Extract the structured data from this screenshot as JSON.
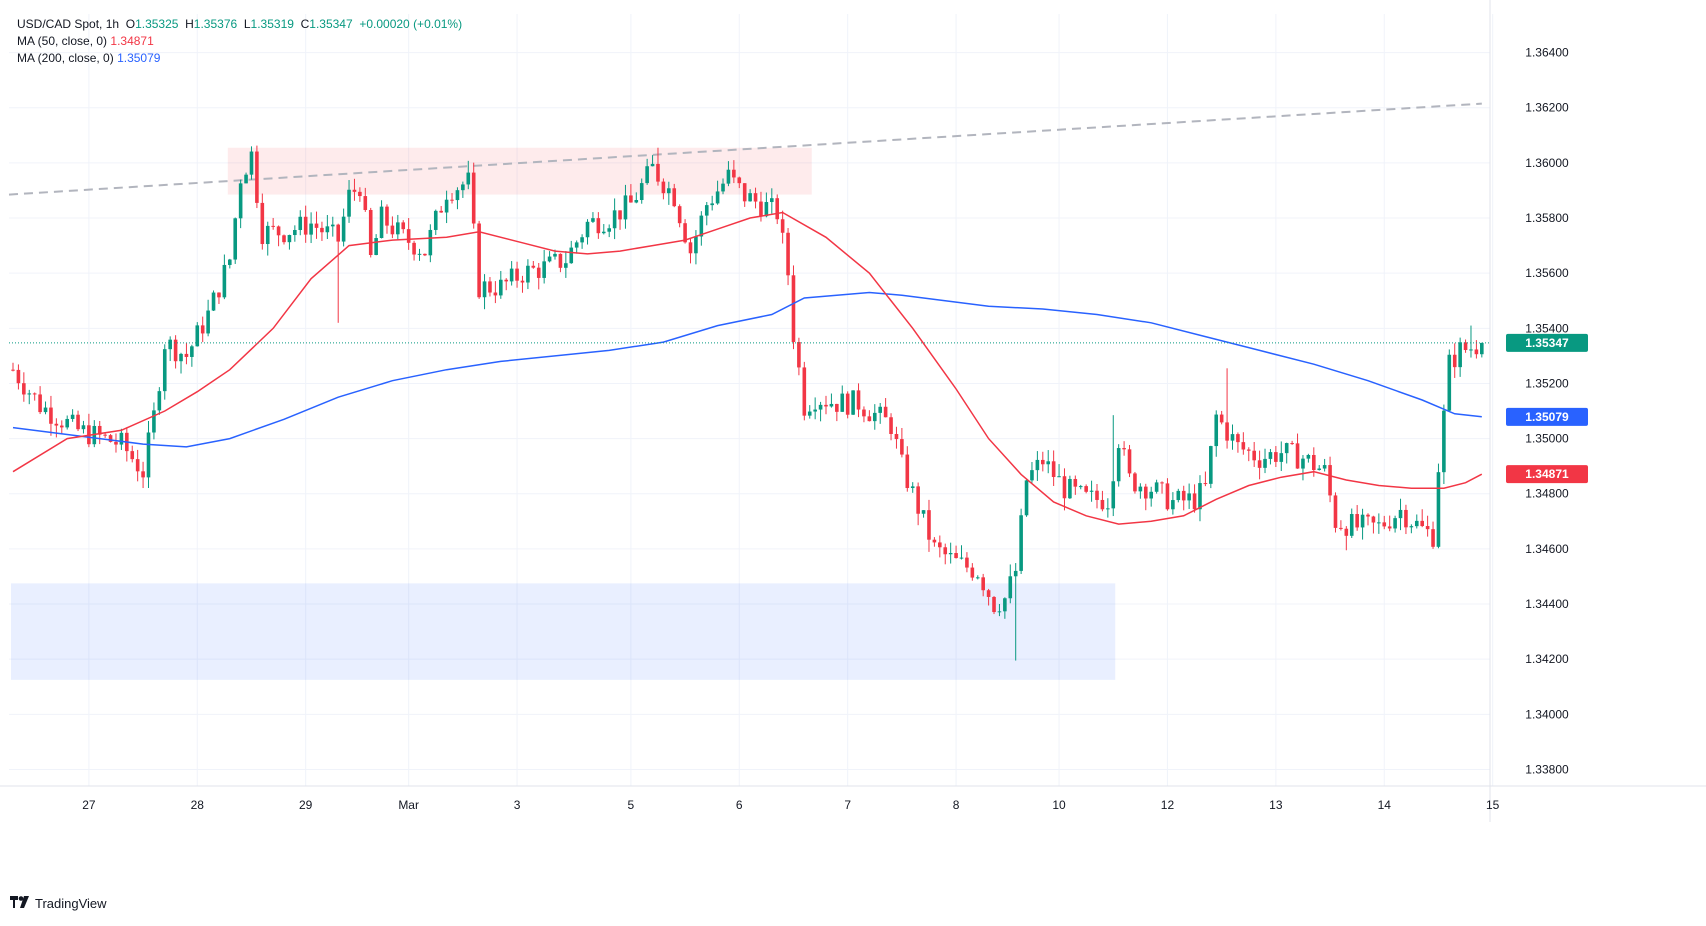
{
  "legend": {
    "symbol": "USD/CAD Spot, 1h",
    "open_label": "O",
    "open": "1.35325",
    "high_label": "H",
    "high": "1.35376",
    "low_label": "L",
    "low": "1.35319",
    "close_label": "C",
    "close": "1.35347",
    "change": "+0.00020 (+0.01%)",
    "ma50_label": "MA (50, close, 0)",
    "ma50_value": "1.34871",
    "ma200_label": "MA (200, close, 0)",
    "ma200_value": "1.35079"
  },
  "brand": {
    "name": "TradingView",
    "logo_icon": "tradingview-logo-icon"
  },
  "colors": {
    "up": "#089981",
    "down": "#f23645",
    "ma50": "#f23645",
    "ma200": "#2962ff",
    "grid": "#f0f3fa",
    "axis_text": "#131722",
    "resistance_zone": "rgba(242,54,69,0.10)",
    "support_zone": "rgba(41,98,255,0.10)",
    "trendline": "#b2b5be"
  },
  "chart_data": {
    "type": "candlestick",
    "symbol": "USD/CAD",
    "interval": "1h",
    "grid": true,
    "y_range": [
      1.3374,
      1.3654
    ],
    "y_ticks": [
      "1.36400",
      "1.36200",
      "1.36000",
      "1.35800",
      "1.35600",
      "1.35400",
      "1.35200",
      "1.35000",
      "1.34800",
      "1.34600",
      "1.34400",
      "1.34200",
      "1.34000",
      "1.33800"
    ],
    "x_ticks": [
      {
        "label": "27",
        "i": 14
      },
      {
        "label": "28",
        "i": 34
      },
      {
        "label": "29",
        "i": 54
      },
      {
        "label": "Mar",
        "i": 73
      },
      {
        "label": "3",
        "i": 93
      },
      {
        "label": "5",
        "i": 114
      },
      {
        "label": "6",
        "i": 134
      },
      {
        "label": "7",
        "i": 154
      },
      {
        "label": "8",
        "i": 174
      },
      {
        "label": "10",
        "i": 193
      },
      {
        "label": "12",
        "i": 213
      },
      {
        "label": "13",
        "i": 233
      },
      {
        "label": "14",
        "i": 253
      },
      {
        "label": "15",
        "i": 273
      }
    ],
    "bar_count": 272,
    "price_line": 1.35347,
    "price_labels": [
      {
        "value": 1.35347,
        "text": "1.35347",
        "color": "#089981"
      },
      {
        "value": 1.35079,
        "text": "1.35079",
        "color": "#2962ff"
      },
      {
        "value": 1.34871,
        "text": "1.34871",
        "color": "#f23645"
      }
    ],
    "zones": [
      {
        "name": "resistance-zone",
        "i_start": 40,
        "i_end": 147,
        "y_top": 1.36055,
        "y_bottom": 1.35885
      },
      {
        "name": "support-zone",
        "i_start": 0,
        "i_end": 203,
        "y_top": 1.34475,
        "y_bottom": 1.34125
      }
    ],
    "trendline": {
      "i_start": 0,
      "y_start": 1.35885,
      "i_end": 271,
      "y_end": 1.36215
    },
    "anchors": [
      [
        0,
        1.3525
      ],
      [
        5,
        1.3512
      ],
      [
        12,
        1.3503
      ],
      [
        20,
        1.3498
      ],
      [
        24,
        1.3488
      ],
      [
        26,
        1.3508
      ],
      [
        28,
        1.3535
      ],
      [
        32,
        1.353
      ],
      [
        36,
        1.3545
      ],
      [
        40,
        1.3565
      ],
      [
        42,
        1.3595
      ],
      [
        44,
        1.3603
      ],
      [
        46,
        1.3575
      ],
      [
        50,
        1.3575
      ],
      [
        55,
        1.3578
      ],
      [
        60,
        1.3572
      ],
      [
        62,
        1.3588
      ],
      [
        64,
        1.3592
      ],
      [
        66,
        1.3565
      ],
      [
        68,
        1.358
      ],
      [
        72,
        1.3573
      ],
      [
        76,
        1.3568
      ],
      [
        80,
        1.359
      ],
      [
        84,
        1.3593
      ],
      [
        86,
        1.3555
      ],
      [
        90,
        1.3555
      ],
      [
        94,
        1.356
      ],
      [
        98,
        1.3562
      ],
      [
        102,
        1.3565
      ],
      [
        106,
        1.3578
      ],
      [
        110,
        1.358
      ],
      [
        114,
        1.3585
      ],
      [
        118,
        1.3598
      ],
      [
        122,
        1.3588
      ],
      [
        125,
        1.3568
      ],
      [
        128,
        1.3585
      ],
      [
        132,
        1.3595
      ],
      [
        135,
        1.3588
      ],
      [
        138,
        1.3585
      ],
      [
        141,
        1.3582
      ],
      [
        143,
        1.356
      ],
      [
        144,
        1.3538
      ],
      [
        146,
        1.3512
      ],
      [
        148,
        1.3515
      ],
      [
        152,
        1.3513
      ],
      [
        156,
        1.3513
      ],
      [
        158,
        1.351
      ],
      [
        162,
        1.3505
      ],
      [
        164,
        1.349
      ],
      [
        168,
        1.347
      ],
      [
        170,
        1.346
      ],
      [
        174,
        1.3455
      ],
      [
        178,
        1.3452
      ],
      [
        181,
        1.344
      ],
      [
        183,
        1.3442
      ],
      [
        185,
        1.3452
      ],
      [
        187,
        1.3485
      ],
      [
        190,
        1.3492
      ],
      [
        194,
        1.3482
      ],
      [
        198,
        1.3478
      ],
      [
        202,
        1.3478
      ],
      [
        204,
        1.35
      ],
      [
        206,
        1.3485
      ],
      [
        210,
        1.3482
      ],
      [
        214,
        1.3477
      ],
      [
        218,
        1.3478
      ],
      [
        220,
        1.3482
      ],
      [
        222,
        1.3508
      ],
      [
        226,
        1.3497
      ],
      [
        230,
        1.3493
      ],
      [
        234,
        1.3495
      ],
      [
        238,
        1.3493
      ],
      [
        242,
        1.3488
      ],
      [
        244,
        1.347
      ],
      [
        248,
        1.3468
      ],
      [
        252,
        1.3468
      ],
      [
        256,
        1.3474
      ],
      [
        260,
        1.3467
      ],
      [
        262,
        1.3465
      ],
      [
        263,
        1.349
      ],
      [
        264,
        1.3508
      ],
      [
        265,
        1.3527
      ],
      [
        267,
        1.3532
      ],
      [
        269,
        1.3533
      ],
      [
        271,
        1.35347
      ]
    ],
    "extremes": [
      {
        "i": 44,
        "high": 1.3606
      },
      {
        "i": 119,
        "high": 1.36055
      },
      {
        "i": 133,
        "high": 1.3601
      },
      {
        "i": 60,
        "low": 1.3542
      },
      {
        "i": 23,
        "low": 1.34845
      },
      {
        "i": 185,
        "low": 1.34195
      },
      {
        "i": 224,
        "high": 1.35255
      },
      {
        "i": 203,
        "high": 1.35085
      },
      {
        "i": 246,
        "low": 1.34595
      },
      {
        "i": 262,
        "low": 1.346
      },
      {
        "i": 269,
        "high": 1.3541
      }
    ],
    "ma50": [
      [
        0,
        1.3488
      ],
      [
        10,
        1.35
      ],
      [
        20,
        1.3503
      ],
      [
        28,
        1.351
      ],
      [
        34,
        1.3517
      ],
      [
        40,
        1.3525
      ],
      [
        48,
        1.354
      ],
      [
        55,
        1.3558
      ],
      [
        62,
        1.357
      ],
      [
        70,
        1.3572
      ],
      [
        80,
        1.3573
      ],
      [
        86,
        1.3575
      ],
      [
        94,
        1.3571
      ],
      [
        100,
        1.3568
      ],
      [
        106,
        1.3567
      ],
      [
        112,
        1.3568
      ],
      [
        118,
        1.357
      ],
      [
        124,
        1.3572
      ],
      [
        130,
        1.3576
      ],
      [
        136,
        1.358
      ],
      [
        142,
        1.3582
      ],
      [
        150,
        1.3573
      ],
      [
        158,
        1.356
      ],
      [
        166,
        1.354
      ],
      [
        174,
        1.3518
      ],
      [
        180,
        1.35
      ],
      [
        186,
        1.3487
      ],
      [
        192,
        1.3477
      ],
      [
        198,
        1.3472
      ],
      [
        204,
        1.3469
      ],
      [
        210,
        1.347
      ],
      [
        216,
        1.3472
      ],
      [
        222,
        1.3478
      ],
      [
        228,
        1.3483
      ],
      [
        234,
        1.3486
      ],
      [
        240,
        1.3488
      ],
      [
        246,
        1.3485
      ],
      [
        252,
        1.3483
      ],
      [
        258,
        1.3482
      ],
      [
        264,
        1.3482
      ],
      [
        268,
        1.3484
      ],
      [
        271,
        1.34871
      ]
    ],
    "ma200": [
      [
        0,
        1.3504
      ],
      [
        8,
        1.3502
      ],
      [
        16,
        1.35
      ],
      [
        24,
        1.3498
      ],
      [
        32,
        1.3497
      ],
      [
        40,
        1.35
      ],
      [
        50,
        1.3507
      ],
      [
        60,
        1.3515
      ],
      [
        70,
        1.3521
      ],
      [
        80,
        1.3525
      ],
      [
        90,
        1.3528
      ],
      [
        100,
        1.353
      ],
      [
        110,
        1.3532
      ],
      [
        120,
        1.3535
      ],
      [
        130,
        1.3541
      ],
      [
        140,
        1.3545
      ],
      [
        146,
        1.3551
      ],
      [
        152,
        1.3552
      ],
      [
        158,
        1.3553
      ],
      [
        164,
        1.3552
      ],
      [
        172,
        1.355
      ],
      [
        180,
        1.3548
      ],
      [
        190,
        1.3547
      ],
      [
        200,
        1.3545
      ],
      [
        210,
        1.3542
      ],
      [
        220,
        1.3537
      ],
      [
        230,
        1.3532
      ],
      [
        240,
        1.3527
      ],
      [
        250,
        1.3521
      ],
      [
        260,
        1.3514
      ],
      [
        266,
        1.3509
      ],
      [
        271,
        1.35079
      ]
    ]
  }
}
